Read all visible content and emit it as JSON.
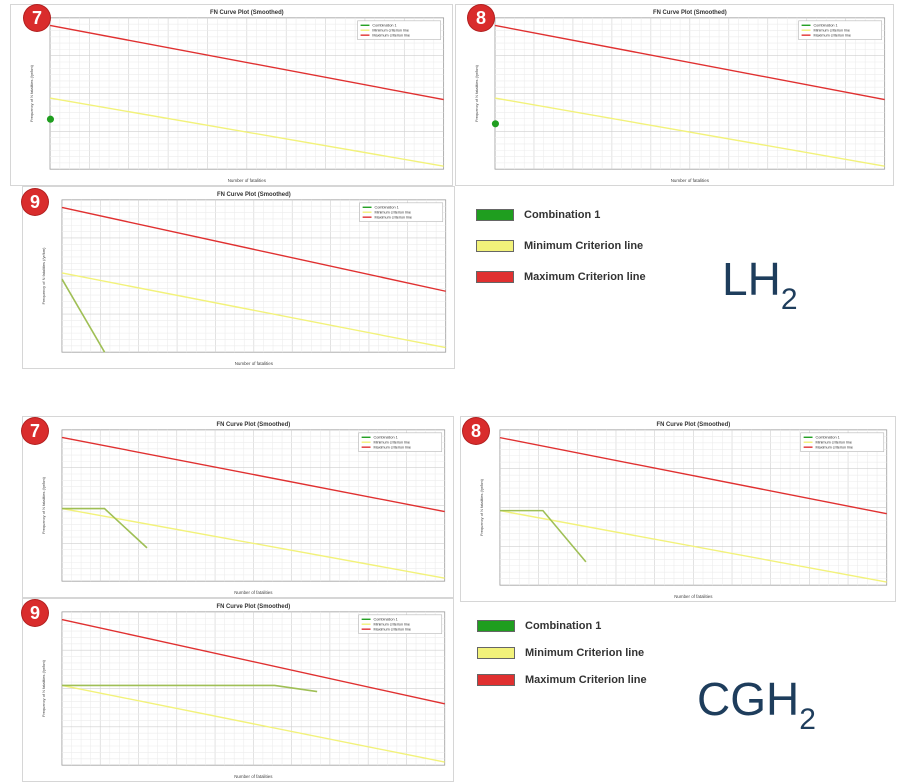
{
  "colors": {
    "combination": "#1f9e1f",
    "minimum": "#f2f27a",
    "maximum": "#e03030",
    "badge": "#d92c2c",
    "fuel_text": "#1e3d5c"
  },
  "sections": [
    {
      "fuel": "LH",
      "fuel_sub": "2",
      "legend": [
        "Combination 1",
        "Minimum Criterion line",
        "Maximum Criterion line"
      ]
    },
    {
      "fuel": "CGH",
      "fuel_sub": "2",
      "legend": [
        "Combination 1",
        "Minimum Criterion line",
        "Maximum Criterion line"
      ]
    }
  ],
  "chart_data": [
    {
      "type": "line",
      "badge": "7",
      "title": "FN Curve Plot (Smoothed)",
      "xlabel": "Number of fatalities",
      "ylabel": "Frequency of N fatalities (/yr/km)",
      "legend": [
        "Combination 1",
        "Minimum criterion line",
        "Maximum criterion line"
      ],
      "legend_position": "top-right",
      "xlim": [
        1,
        10
      ],
      "ylim": [
        0,
        100
      ],
      "series": [
        {
          "name": "Maximum criterion line",
          "x": [
            1,
            10
          ],
          "y": [
            95,
            46
          ]
        },
        {
          "name": "Minimum criterion line",
          "x": [
            1,
            10
          ],
          "y": [
            47,
            2
          ]
        },
        {
          "name": "Combination 1",
          "x": [
            1.01
          ],
          "y": [
            33
          ]
        }
      ]
    },
    {
      "type": "line",
      "badge": "8",
      "title": "FN Curve Plot (Smoothed)",
      "xlabel": "Number of fatalities",
      "ylabel": "Frequency of N fatalities (/yr/km)",
      "legend": [
        "Combination 1",
        "Minimum criterion line",
        "Maximum criterion line"
      ],
      "legend_position": "top-right",
      "xlim": [
        1,
        10
      ],
      "ylim": [
        0,
        100
      ],
      "series": [
        {
          "name": "Maximum criterion line",
          "x": [
            1,
            10
          ],
          "y": [
            95,
            46
          ]
        },
        {
          "name": "Minimum criterion line",
          "x": [
            1,
            10
          ],
          "y": [
            47,
            2
          ]
        },
        {
          "name": "Combination 1",
          "x": [
            1.01
          ],
          "y": [
            30
          ]
        }
      ]
    },
    {
      "type": "line",
      "badge": "9",
      "title": "FN Curve Plot (Smoothed)",
      "xlabel": "Number of fatalities",
      "ylabel": "Frequency of N fatalities (/yr/km)",
      "legend": [
        "Combination 1",
        "Minimum criterion line",
        "Maximum criterion line"
      ],
      "legend_position": "top-right",
      "xlim": [
        1,
        10
      ],
      "ylim": [
        0,
        100
      ],
      "series": [
        {
          "name": "Maximum criterion line",
          "x": [
            1,
            10
          ],
          "y": [
            95,
            40
          ]
        },
        {
          "name": "Minimum criterion line",
          "x": [
            1,
            10
          ],
          "y": [
            52,
            3
          ]
        },
        {
          "name": "Combination 1",
          "x": [
            1,
            2
          ],
          "y": [
            48,
            0
          ]
        }
      ]
    },
    {
      "type": "line",
      "badge": "7",
      "title": "FN Curve Plot (Smoothed)",
      "xlabel": "Number of fatalities",
      "ylabel": "Frequency of N fatalities (/yr/km)",
      "legend": [
        "Combination 1",
        "Minimum criterion line",
        "Maximum criterion line"
      ],
      "legend_position": "top-right",
      "xlim": [
        1,
        10
      ],
      "ylim": [
        0,
        100
      ],
      "series": [
        {
          "name": "Maximum criterion line",
          "x": [
            1,
            10
          ],
          "y": [
            95,
            46
          ]
        },
        {
          "name": "Minimum criterion line",
          "x": [
            1,
            10
          ],
          "y": [
            48,
            2
          ]
        },
        {
          "name": "Combination 1",
          "x": [
            1,
            2,
            3
          ],
          "y": [
            48,
            48,
            22
          ]
        }
      ]
    },
    {
      "type": "line",
      "badge": "8",
      "title": "FN Curve Plot (Smoothed)",
      "xlabel": "Number of fatalities",
      "ylabel": "Frequency of N fatalities (/yr/km)",
      "legend": [
        "Combination 1",
        "Minimum criterion line",
        "Maximum criterion line"
      ],
      "legend_position": "top-right",
      "xlim": [
        1,
        10
      ],
      "ylim": [
        0,
        100
      ],
      "series": [
        {
          "name": "Maximum criterion line",
          "x": [
            1,
            10
          ],
          "y": [
            95,
            46
          ]
        },
        {
          "name": "Minimum criterion line",
          "x": [
            1,
            10
          ],
          "y": [
            48,
            2
          ]
        },
        {
          "name": "Combination 1",
          "x": [
            1,
            2,
            3
          ],
          "y": [
            48,
            48,
            15
          ]
        }
      ]
    },
    {
      "type": "line",
      "badge": "9",
      "title": "FN Curve Plot (Smoothed)",
      "xlabel": "Number of fatalities",
      "ylabel": "Frequency of N fatalities (/yr/km)",
      "legend": [
        "Combination 1",
        "Minimum criterion line",
        "Maximum criterion line"
      ],
      "legend_position": "top-right",
      "xlim": [
        1,
        10
      ],
      "ylim": [
        0,
        100
      ],
      "series": [
        {
          "name": "Maximum criterion line",
          "x": [
            1,
            10
          ],
          "y": [
            95,
            40
          ]
        },
        {
          "name": "Minimum criterion line",
          "x": [
            1,
            10
          ],
          "y": [
            52,
            2
          ]
        },
        {
          "name": "Combination 1",
          "x": [
            1,
            6,
            7
          ],
          "y": [
            52,
            52,
            48
          ]
        }
      ]
    }
  ]
}
